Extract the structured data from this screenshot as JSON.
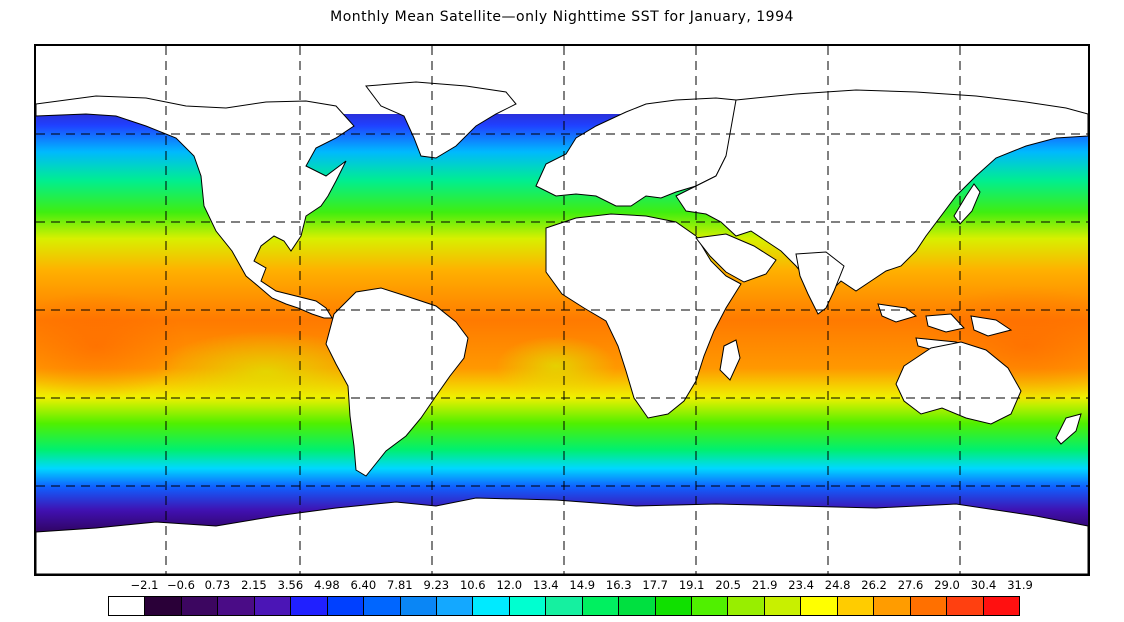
{
  "title": "Monthly Mean Satellite—only Nighttime SST for January, 1994",
  "map": {
    "projection": "equirectangular",
    "grid_lines": "dashed",
    "land_color": "#ffffff"
  },
  "legend": {
    "labels": [
      "−2.1",
      "−0.6",
      "0.73",
      "2.15",
      "3.56",
      "4.98",
      "6.40",
      "7.81",
      "9.23",
      "10.6",
      "12.0",
      "13.4",
      "14.9",
      "16.3",
      "17.7",
      "19.1",
      "20.5",
      "21.9",
      "23.4",
      "24.8",
      "26.2",
      "27.6",
      "29.0",
      "30.4",
      "31.9"
    ],
    "colors": [
      "#ffffff",
      "#2a0038",
      "#3c0660",
      "#4a0c86",
      "#4b15b6",
      "#2020ff",
      "#0040ff",
      "#0066ff",
      "#0a86f5",
      "#14a8ff",
      "#00eaff",
      "#00ffd0",
      "#15f0a0",
      "#00f060",
      "#00e040",
      "#10e000",
      "#50f000",
      "#98ee00",
      "#c8f000",
      "#ffff00",
      "#ffcc00",
      "#ff9c00",
      "#ff7000",
      "#ff4010",
      "#ff1010"
    ]
  }
}
